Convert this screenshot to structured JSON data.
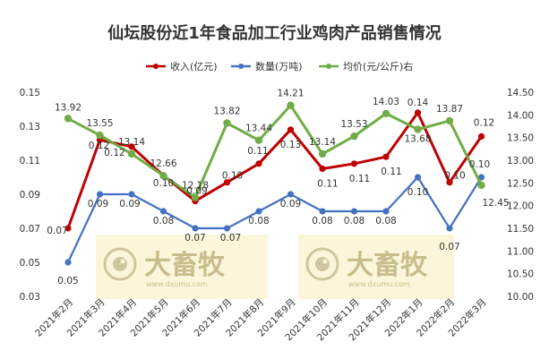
{
  "chart_data": {
    "type": "line",
    "title": "仙坛股份近1年食品加工行业鸡肉产品销售情况",
    "categories": [
      "2021年2月",
      "2021年3月",
      "2021年4月",
      "2021年5月",
      "2021年6月",
      "2021年7月",
      "2021年8月",
      "2021年9月",
      "2021年10月",
      "2021年11月",
      "2021年12月",
      "2022年1月",
      "2022年2月",
      "2022年3月"
    ],
    "y_left": {
      "ylim": [
        0.03,
        0.15
      ],
      "ticks": [
        "0.03",
        "0.05",
        "0.07",
        "0.09",
        "0.11",
        "0.13",
        "0.15"
      ]
    },
    "y_right": {
      "ylim": [
        10.0,
        14.5
      ],
      "ticks": [
        "10.00",
        "10.50",
        "11.00",
        "11.50",
        "12.00",
        "12.50",
        "13.00",
        "13.50",
        "14.00",
        "14.50"
      ]
    },
    "series": [
      {
        "name": "收入(亿元)",
        "axis": "left",
        "color": "#c00000",
        "values": [
          0.07,
          0.122,
          0.118,
          0.101,
          0.086,
          0.097,
          0.108,
          0.128,
          0.105,
          0.108,
          0.112,
          0.138,
          0.097,
          0.124
        ],
        "labels": [
          "0.07",
          "0.12",
          "0.12",
          "0.10",
          "0.09",
          "0.10",
          "0.11",
          "0.13",
          "0.11",
          "0.11",
          "0.11",
          "0.14",
          "0.10",
          "0.12"
        ]
      },
      {
        "name": "数量(万吨)",
        "axis": "left",
        "color": "#4472c4",
        "values": [
          0.05,
          0.09,
          0.09,
          0.08,
          0.07,
          0.07,
          0.08,
          0.09,
          0.08,
          0.08,
          0.08,
          0.1,
          0.07,
          0.1
        ],
        "labels": [
          "0.05",
          "0.09",
          "0.09",
          "0.08",
          "0.07",
          "0.07",
          "0.08",
          "0.09",
          "0.08",
          "0.08",
          "0.08",
          "0.10",
          "0.07",
          "0.10"
        ]
      },
      {
        "name": "均价(元/公斤)右",
        "axis": "right",
        "color": "#70ad47",
        "values": [
          13.92,
          13.55,
          13.14,
          12.66,
          12.18,
          13.82,
          13.44,
          14.21,
          13.14,
          13.53,
          14.03,
          13.68,
          13.87,
          12.45
        ],
        "labels": [
          "13.92",
          "13.55",
          "13.14",
          "12.66",
          "12.18",
          "13.82",
          "13.44",
          "14.21",
          "13.14",
          "13.53",
          "14.03",
          "13.68",
          "13.87",
          "12.45"
        ]
      }
    ],
    "legend_position": "top",
    "grid": false
  },
  "watermark": {
    "brand": "大畜牧",
    "url": "www.dxumu.com",
    "icon": "eye-logo-icon"
  }
}
